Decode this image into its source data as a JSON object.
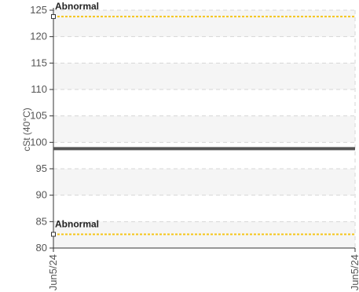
{
  "chart_data": {
    "type": "line",
    "ylabel": "cSt (40°C)",
    "ylim": [
      80,
      125
    ],
    "y_ticks": [
      "80",
      "85",
      "90",
      "95",
      "100",
      "105",
      "110",
      "115",
      "120",
      "125"
    ],
    "x_ticks": [
      "Jun5/24",
      "Jun5/24"
    ],
    "grid": true,
    "series": [
      {
        "x": [
          "Jun5/24",
          "Jun5/24"
        ],
        "values": [
          98.8,
          98.8
        ],
        "color": "#555555"
      }
    ],
    "thresholds": [
      {
        "label": "Abnormal",
        "value": 123.8,
        "color": "#f5c518"
      },
      {
        "label": "Abnormal",
        "value": 82.6,
        "color": "#f5c518"
      }
    ]
  }
}
